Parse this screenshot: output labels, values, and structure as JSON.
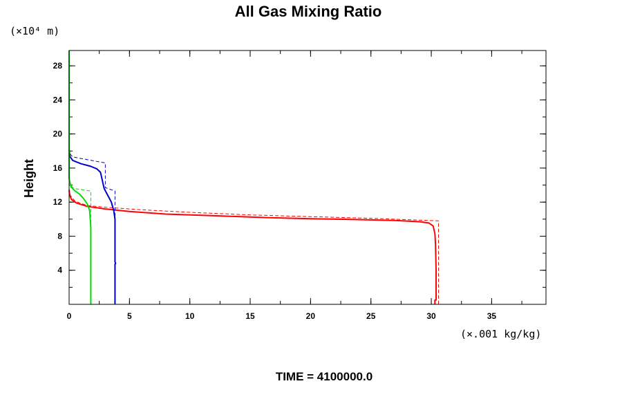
{
  "chart_data": {
    "type": "line",
    "title": "All Gas Mixing Ratio",
    "xlabel": "",
    "ylabel": "Height",
    "y_unit_label": "(×10⁴ m)",
    "x_unit_label": "(×.001 kg/kg)",
    "footer": "TIME = 4100000.0",
    "xlim": [
      0,
      39.5
    ],
    "ylim": [
      0,
      29.8
    ],
    "x_ticks": [
      0,
      5,
      10,
      15,
      20,
      25,
      30,
      35
    ],
    "y_ticks": [
      4,
      8,
      12,
      16,
      20,
      24,
      28
    ],
    "grid": false,
    "series": [
      {
        "color": "#ff0000",
        "style": "solid",
        "x": [
          0,
          0.05,
          0.2,
          0.6,
          1.5,
          3,
          5,
          8,
          12,
          16,
          20,
          24,
          27,
          29,
          29.8,
          30.15,
          30.3,
          30.35,
          30.4,
          30.4,
          30.3,
          30.3
        ],
        "y": [
          13.4,
          12.8,
          12.3,
          11.9,
          11.5,
          11.2,
          10.9,
          10.6,
          10.4,
          10.2,
          10.05,
          9.95,
          9.85,
          9.7,
          9.55,
          9.2,
          8.3,
          7,
          4,
          0.5,
          0.5,
          0
        ]
      },
      {
        "color": "#ff0000",
        "style": "dashed",
        "x": [
          0,
          0.1,
          0.5,
          1.5,
          3,
          6,
          10,
          15,
          20,
          25,
          30.6,
          30.6
        ],
        "y": [
          13.6,
          12.8,
          12.1,
          11.6,
          11.4,
          11.1,
          10.8,
          10.5,
          10.3,
          10.1,
          9.8,
          0
        ]
      },
      {
        "color": "#0000cc",
        "style": "solid",
        "x": [
          0,
          0.05,
          0.3,
          1,
          1.8,
          2.3,
          2.6,
          2.9,
          3.2,
          3.5,
          3.7,
          3.8,
          3.8,
          3.8,
          3.85,
          3.8,
          3.8
        ],
        "y": [
          18.2,
          17.4,
          16.9,
          16.5,
          16.2,
          15.9,
          15.5,
          13.6,
          12.8,
          12.0,
          11.0,
          10.0,
          9.5,
          5,
          4.8,
          4.7,
          0
        ]
      },
      {
        "color": "#0000cc",
        "style": "dashed",
        "x": [
          0,
          0.05,
          0.3,
          3,
          3,
          3.8,
          3.8
        ],
        "y": [
          18.3,
          17.7,
          17.3,
          16.6,
          13.7,
          13.3,
          0
        ]
      },
      {
        "color": "#00dd00",
        "style": "solid",
        "x": [
          0,
          0,
          0.15,
          0.5,
          0.9,
          1.2,
          1.5,
          1.7,
          1.75,
          1.8,
          1.8
        ],
        "y": [
          29.8,
          14.8,
          13.8,
          13.3,
          12.9,
          12.4,
          11.8,
          11.0,
          10.0,
          9.0,
          0
        ]
      },
      {
        "color": "#00dd00",
        "style": "dashed",
        "x": [
          0,
          0.1,
          0.4,
          1.8,
          1.8
        ],
        "y": [
          14.5,
          14.0,
          13.6,
          13.3,
          0
        ]
      }
    ]
  }
}
